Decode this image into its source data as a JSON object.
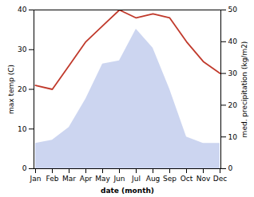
{
  "chart_data": {
    "type": "line",
    "xlabel": "date (month)",
    "ylabel": "max temp (C)",
    "y2label": "med. precipitation (kg/m2)",
    "categories": [
      "Jan",
      "Feb",
      "Mar",
      "Apr",
      "May",
      "Jun",
      "Jul",
      "Aug",
      "Sep",
      "Oct",
      "Nov",
      "Dec"
    ],
    "series": [
      {
        "type": "area",
        "axis": "y2",
        "color": "#b0bee8",
        "values": [
          8,
          9,
          13,
          22,
          33,
          34,
          44,
          38,
          25,
          10,
          8,
          8
        ]
      },
      {
        "type": "line",
        "color": "#c0392b",
        "values": [
          21,
          20,
          26,
          32,
          36,
          40,
          38,
          39,
          38,
          32,
          27,
          24
        ]
      }
    ],
    "ylim": [
      0,
      40
    ],
    "yticks": [
      0,
      10,
      20,
      30,
      40
    ],
    "y2lim": [
      0,
      50
    ],
    "y2ticks": [
      0,
      10,
      20,
      30,
      40,
      50
    ]
  }
}
